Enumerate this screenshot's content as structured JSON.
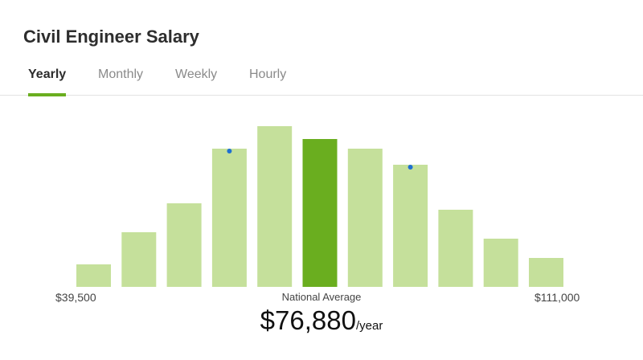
{
  "title": "Civil Engineer Salary",
  "tabs": [
    {
      "label": "Yearly",
      "active": true
    },
    {
      "label": "Monthly",
      "active": false
    },
    {
      "label": "Weekly",
      "active": false
    },
    {
      "label": "Hourly",
      "active": false
    }
  ],
  "colors": {
    "bar": "#c5e09b",
    "bar_highlight": "#6aae1f",
    "marker": "#1f6fd1",
    "tab_indicator": "#6aae1f"
  },
  "chart_data": {
    "type": "bar",
    "values": [
      7,
      17,
      26,
      43,
      50,
      46,
      43,
      38,
      24,
      15,
      9
    ],
    "highlight_index": 5,
    "marker_indices": [
      3,
      7
    ],
    "ylim": [
      0,
      55
    ],
    "min_label": "$39,500",
    "max_label": "$111,000"
  },
  "summary": {
    "caption": "National Average",
    "amount": "$76,880",
    "unit": "/year"
  }
}
